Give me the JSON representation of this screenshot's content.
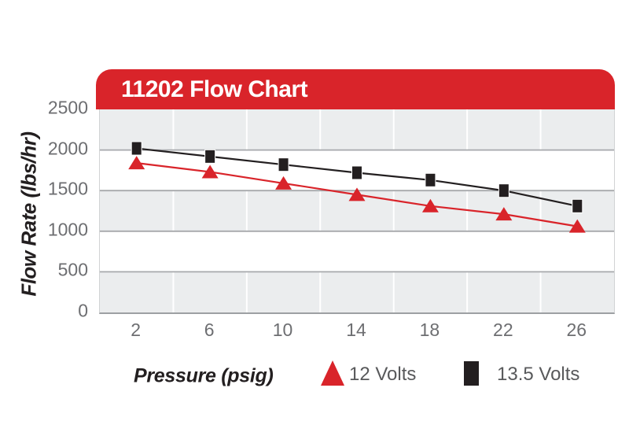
{
  "chart": {
    "colors": {
      "banner_red": "#d9242a",
      "series_red": "#d9242a",
      "series_black": "#231f20",
      "band_gray": "#ebedee",
      "band_white": "#ffffff",
      "gridline": "#a7a9ac",
      "vertical_gridline": "#ffffff",
      "tick_text": "#6d6e71",
      "legend_text": "#58595b",
      "title_text": "#ffffff"
    }
  },
  "chart_data": {
    "type": "line",
    "title": "11202 Flow Chart",
    "xlabel": "Pressure (psig)",
    "ylabel": "Flow Rate (lbs/hr)",
    "x": [
      2,
      6,
      10,
      14,
      18,
      22,
      26
    ],
    "xticks": [
      2,
      6,
      10,
      14,
      18,
      22,
      26
    ],
    "yticks": [
      0,
      500,
      1000,
      1500,
      2000,
      2500
    ],
    "ylim": [
      0,
      2500
    ],
    "series": [
      {
        "name": "12 Volts",
        "marker": "triangle",
        "color": "#d9242a",
        "values": [
          1840,
          1730,
          1590,
          1450,
          1310,
          1210,
          1060
        ]
      },
      {
        "name": "13.5 Volts",
        "marker": "square",
        "color": "#231f20",
        "values": [
          2020,
          1920,
          1820,
          1720,
          1630,
          1500,
          1310
        ]
      }
    ],
    "grid": "horizontal lines every 500; alternating 500-unit gray/white bands; white vertical lines at category boundaries",
    "legend_position": "bottom"
  }
}
